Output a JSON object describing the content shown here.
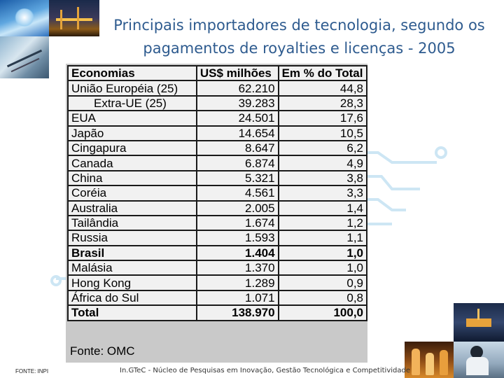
{
  "title": "Principais importadores de tecnologia, segundo os pagamentos de royalties e licenças - 2005",
  "table": {
    "headers": [
      "Economias",
      "US$ milhões",
      "Em % do Total"
    ],
    "rows": [
      {
        "economia": "União Européia (25)",
        "valor": "62.210",
        "pct": "44,8"
      },
      {
        "economia": "Extra-UE (25)",
        "valor": "39.283",
        "pct": "28,3"
      },
      {
        "economia": "EUA",
        "valor": "24.501",
        "pct": "17,6"
      },
      {
        "economia": "Japão",
        "valor": "14.654",
        "pct": "10,5"
      },
      {
        "economia": "Cingapura",
        "valor": "8.647",
        "pct": "6,2"
      },
      {
        "economia": "Canada",
        "valor": "6.874",
        "pct": "4,9"
      },
      {
        "economia": "China",
        "valor": "5.321",
        "pct": "3,8"
      },
      {
        "economia": "Coréia",
        "valor": "4.561",
        "pct": "3,3"
      },
      {
        "economia": "Australia",
        "valor": "2.005",
        "pct": "1,4"
      },
      {
        "economia": "Tailândia",
        "valor": "1.674",
        "pct": "1,2"
      },
      {
        "economia": "Russia",
        "valor": "1.593",
        "pct": "1,1"
      },
      {
        "economia": "Brasil",
        "valor": "1.404",
        "pct": "1,0"
      },
      {
        "economia": "Malásia",
        "valor": "1.370",
        "pct": "1,0"
      },
      {
        "economia": "Hong Kong",
        "valor": "1.289",
        "pct": "0,9"
      },
      {
        "economia": "África do Sul",
        "valor": "1.071",
        "pct": "0,8"
      }
    ],
    "total": {
      "economia": "Total",
      "valor": "138.970",
      "pct": "100,0"
    },
    "source": "Fonte: OMC"
  },
  "footer": {
    "fonte_inpi": "FONTE: INPI",
    "credit": "In.GTeC - Núcleo de Pesquisas em Inovação, Gestão Tecnológica e Competitividade"
  },
  "colors": {
    "title": "#2e5b8f",
    "circuit": "#cde6f4",
    "table_bg": "#f1f1f1",
    "frame": "#c9c9c9"
  }
}
